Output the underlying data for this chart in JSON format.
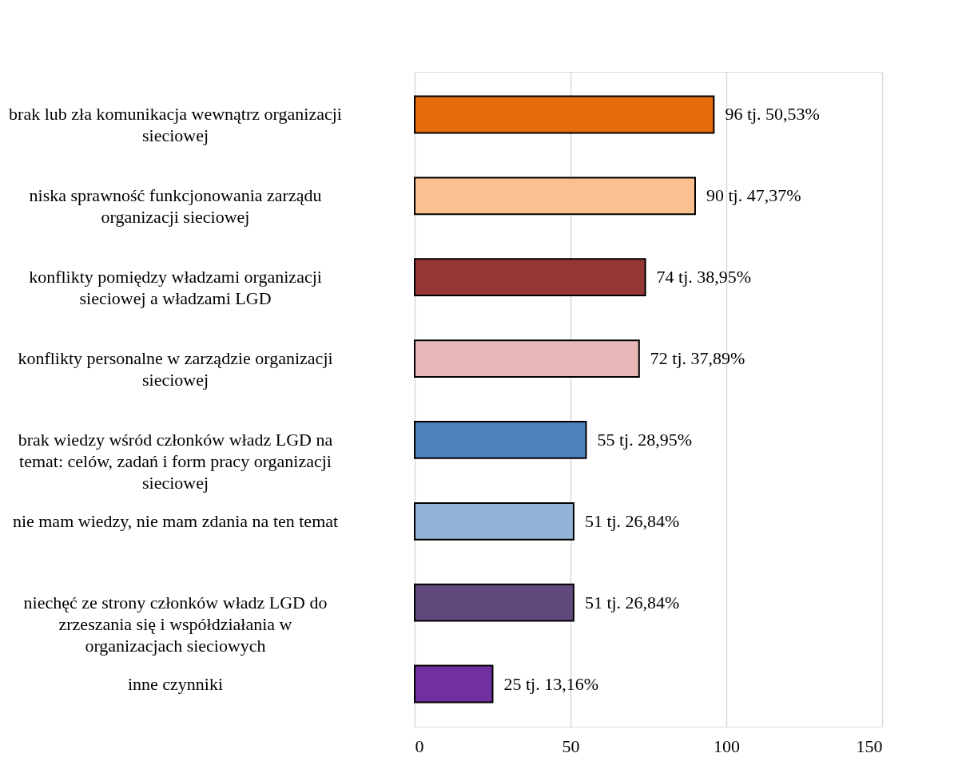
{
  "chart_data": {
    "type": "bar",
    "orientation": "horizontal",
    "categories": [
      "brak lub zła komunikacja wewnątrz organizacji sieciowej",
      "niska sprawność funkcjonowania zarządu organizacji sieciowej",
      "konflikty pomiędzy władzami organizacji sieciowej a władzami LGD",
      "konflikty personalne w zarządzie organizacji sieciowej",
      "brak wiedzy wśród członków władz LGD na temat: celów, zadań i form pracy organizacji sieciowej",
      "nie mam wiedzy, nie mam zdania na ten temat",
      "niechęć ze strony członków władz LGD do zrzeszania się i współdziałania w organizacjach sieciowych",
      "inne czynniki"
    ],
    "values": [
      96,
      90,
      74,
      72,
      55,
      51,
      51,
      25
    ],
    "colors": [
      "#e46c0a",
      "#fac090",
      "#953735",
      "#e6b9b8",
      "#4f81bd",
      "#95b3d7",
      "#604a7b",
      "#7030a0"
    ],
    "value_labels": [
      "96 tj. 50,53%",
      "90 tj. 47,37%",
      "74 tj. 38,95%",
      "72 tj. 37,89%",
      "55 tj. 28,95%",
      "51 tj. 26,84%",
      "51 tj. 26,84%",
      "25 tj. 13,16%"
    ],
    "xlim": [
      0,
      150
    ],
    "xticks": [
      0,
      50,
      100,
      150
    ],
    "grid": "x"
  }
}
